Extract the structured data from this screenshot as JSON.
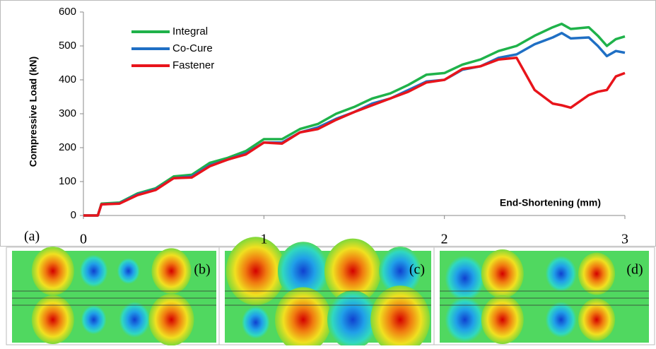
{
  "chart_data": {
    "type": "line",
    "ylabel": "Compressive Load (kN)",
    "xlabel": "End-Shortening (mm)",
    "panel_label": "(a)",
    "x": [
      0,
      0.08,
      0.1,
      0.2,
      0.3,
      0.4,
      0.5,
      0.6,
      0.7,
      0.8,
      0.9,
      1.0,
      1.1,
      1.2,
      1.3,
      1.4,
      1.5,
      1.6,
      1.7,
      1.8,
      1.9,
      2.0,
      2.1,
      2.2,
      2.3,
      2.4,
      2.5,
      2.6,
      2.65,
      2.7,
      2.8,
      2.85,
      2.9,
      2.95,
      3.0
    ],
    "series": [
      {
        "name": "Integral",
        "color": "#1fb24a",
        "values": [
          0,
          0,
          35,
          38,
          65,
          80,
          115,
          120,
          155,
          170,
          190,
          225,
          225,
          255,
          270,
          300,
          320,
          345,
          360,
          385,
          415,
          420,
          445,
          460,
          485,
          500,
          530,
          555,
          565,
          550,
          555,
          530,
          500,
          520,
          528
        ]
      },
      {
        "name": "Co-Cure",
        "color": "#1f6fc4",
        "values": [
          0,
          0,
          33,
          36,
          62,
          77,
          110,
          115,
          148,
          165,
          183,
          215,
          215,
          245,
          260,
          285,
          305,
          330,
          345,
          370,
          395,
          400,
          430,
          440,
          465,
          475,
          505,
          525,
          538,
          522,
          525,
          500,
          470,
          485,
          480
        ]
      },
      {
        "name": "Fastener",
        "color": "#e8141b",
        "values": [
          0,
          0,
          33,
          35,
          60,
          75,
          110,
          112,
          145,
          165,
          180,
          215,
          212,
          245,
          255,
          282,
          305,
          325,
          345,
          365,
          392,
          400,
          432,
          440,
          460,
          465,
          370,
          330,
          325,
          318,
          355,
          365,
          370,
          410,
          420
        ]
      }
    ],
    "xlim": [
      0,
      3
    ],
    "xticks": [
      0,
      1,
      2,
      3
    ],
    "ylim": [
      0,
      600
    ],
    "yticks": [
      0,
      100,
      200,
      300,
      400,
      500,
      600
    ],
    "legend": "upper-left"
  },
  "panels": [
    "(b)",
    "(c)",
    "(d)"
  ]
}
